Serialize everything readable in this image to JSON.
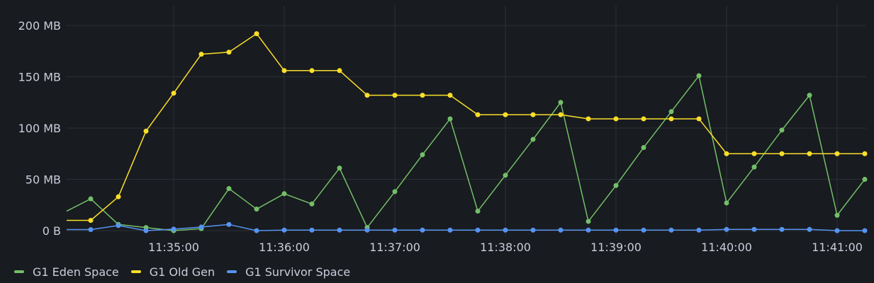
{
  "panel": {
    "background": "#181b1f",
    "grid_color": "#2c2f35",
    "text_color": "#ccccdc"
  },
  "legend": {
    "items": [
      {
        "label": "G1 Eden Space",
        "color": "#73bf69"
      },
      {
        "label": "G1 Old Gen",
        "color": "#fade2a"
      },
      {
        "label": "G1 Survivor Space",
        "color": "#5794f2"
      }
    ]
  },
  "chart_data": {
    "type": "line",
    "title": "",
    "xlabel": "",
    "ylabel": "",
    "unit": "MB",
    "ylim": [
      0,
      200
    ],
    "yticks": [
      {
        "value": 0,
        "label": "0 B"
      },
      {
        "value": 50,
        "label": "50 MB"
      },
      {
        "value": 100,
        "label": "100 MB"
      },
      {
        "value": 150,
        "label": "150 MB"
      },
      {
        "value": 200,
        "label": "200 MB"
      }
    ],
    "xticks": [
      {
        "index": 3,
        "label": "11:35:00"
      },
      {
        "index": 7,
        "label": "11:36:00"
      },
      {
        "index": 11,
        "label": "11:37:00"
      },
      {
        "index": 15,
        "label": "11:38:00"
      },
      {
        "index": 19,
        "label": "11:39:00"
      },
      {
        "index": 23,
        "label": "11:40:00"
      },
      {
        "index": 27,
        "label": "11:41:00"
      }
    ],
    "x": [
      "11:34:15",
      "11:34:30",
      "11:34:45",
      "11:35:00",
      "11:35:15",
      "11:35:30",
      "11:35:45",
      "11:36:00",
      "11:36:15",
      "11:36:30",
      "11:36:45",
      "11:37:00",
      "11:37:15",
      "11:37:30",
      "11:37:45",
      "11:38:00",
      "11:38:15",
      "11:38:30",
      "11:38:45",
      "11:39:00",
      "11:39:15",
      "11:39:30",
      "11:39:45",
      "11:40:00",
      "11:40:15",
      "11:40:30",
      "11:40:45",
      "11:41:00",
      "11:41:15"
    ],
    "grid": true,
    "legend_position": "bottom",
    "series": [
      {
        "name": "G1 Eden Space",
        "color": "#73bf69",
        "start_value": 19,
        "values": [
          31,
          6,
          3,
          0,
          2,
          41,
          21,
          36,
          26,
          61,
          3,
          38,
          74,
          109,
          19,
          54,
          89,
          125,
          9,
          44,
          81,
          116,
          151,
          27,
          62,
          98,
          132,
          15,
          50
        ]
      },
      {
        "name": "G1 Old Gen",
        "color": "#fade2a",
        "start_value": 10,
        "values": [
          10,
          33,
          97,
          134,
          172,
          174,
          192,
          156,
          156,
          156,
          132,
          132,
          132,
          132,
          113,
          113,
          113,
          113,
          109,
          109,
          109,
          109,
          109,
          75,
          75,
          75,
          75,
          75,
          75
        ]
      },
      {
        "name": "G1 Survivor Space",
        "color": "#5794f2",
        "start_value": 1,
        "values": [
          1,
          5,
          0,
          1.5,
          3.5,
          6,
          0,
          0.5,
          0.5,
          0.5,
          0.5,
          0.5,
          0.5,
          0.5,
          0.5,
          0.5,
          0.5,
          0.5,
          0.5,
          0.5,
          0.5,
          0.5,
          0.5,
          1.2,
          1.2,
          1.2,
          1.2,
          0,
          0
        ]
      }
    ]
  }
}
